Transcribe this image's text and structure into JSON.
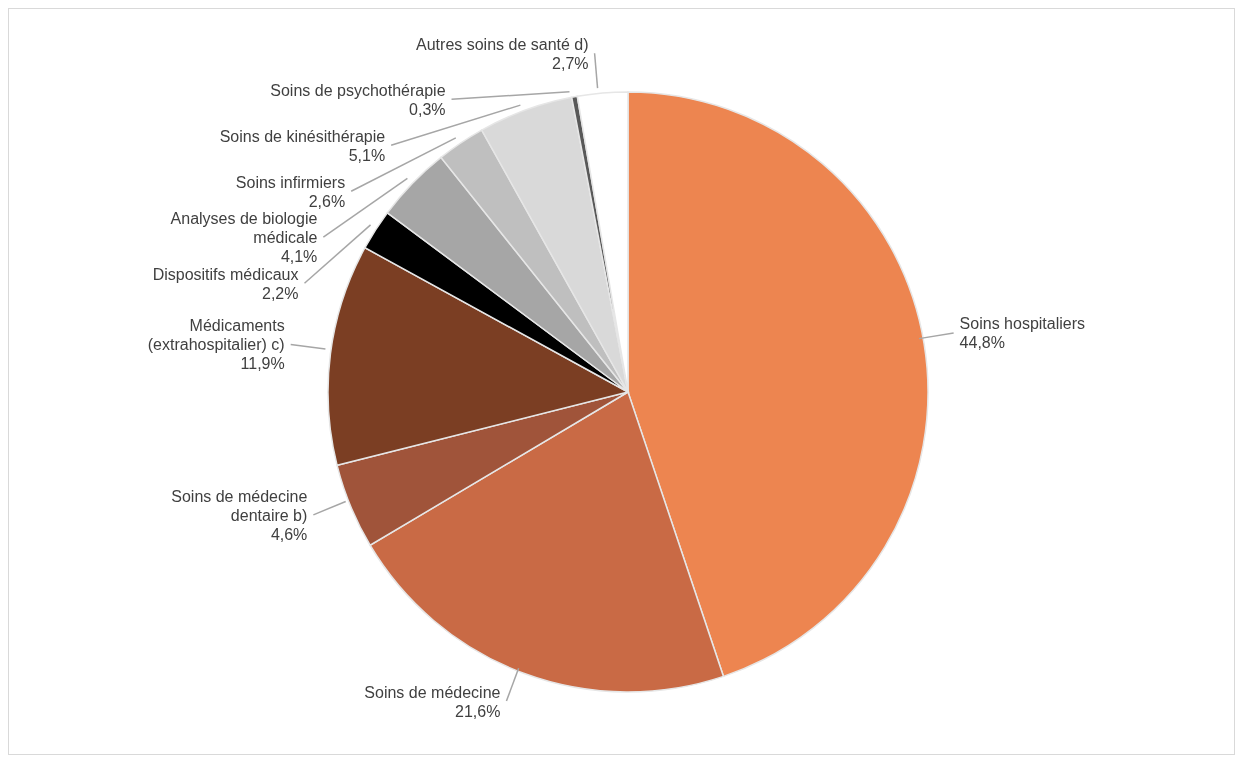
{
  "chart_data": {
    "type": "pie",
    "categories": [
      "Soins hospitaliers",
      "Soins de médecine",
      "Soins de médecine dentaire b)",
      "Médicaments (extrahospitalier) c)",
      "Dispositifs médicaux",
      "Analyses de biologie médicale",
      "Soins infirmiers",
      "Soins de kinésithérapie",
      "Soins de psychothérapie",
      "Autres soins de santé d)"
    ],
    "values": [
      44.8,
      21.6,
      4.6,
      11.9,
      2.2,
      4.1,
      2.6,
      5.1,
      0.3,
      2.7
    ],
    "value_labels": [
      "44,8%",
      "21,6%",
      "4,6%",
      "11,9%",
      "2,2%",
      "4,1%",
      "2,6%",
      "5,1%",
      "0,3%",
      "2,7%"
    ],
    "colors": [
      "#ed8550",
      "#c96a45",
      "#a0543a",
      "#7b3e23",
      "#000000",
      "#a6a6a6",
      "#bfbfbf",
      "#d9d9d9",
      "#595959",
      "#ffffff"
    ]
  }
}
